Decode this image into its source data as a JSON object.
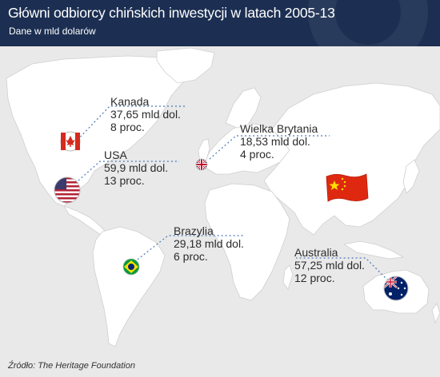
{
  "header": {
    "title": "Główni odbiorcy chińskich inwestycji w latach 2005-13",
    "subtitle": "Dane w mld dolarów"
  },
  "colors": {
    "header_bg": "#1c2f52",
    "ocean": "#e9e9e9",
    "land": "#ffffff",
    "leader_line": "#4a78b5"
  },
  "countries": [
    {
      "id": "kanada",
      "name": "Kanada",
      "amount": "37,65 mld dol.",
      "share": "8 proc.",
      "flag": "canada-flag"
    },
    {
      "id": "usa",
      "name": "USA",
      "amount": "59,9 mld dol.",
      "share": "13 proc.",
      "flag": "usa-flag"
    },
    {
      "id": "wielka-brytania",
      "name": "Wielka Brytania",
      "amount": "18,53 mld dol.",
      "share": "4 proc.",
      "flag": "uk-flag"
    },
    {
      "id": "brazylia",
      "name": "Brazylia",
      "amount": "29,18 mld dol.",
      "share": "6 proc.",
      "flag": "brazil-flag"
    },
    {
      "id": "australia",
      "name": "Australia",
      "amount": "57,25 mld dol.",
      "share": "12 proc.",
      "flag": "australia-flag"
    }
  ],
  "investor": {
    "flag": "china-flag"
  },
  "source": "Źródło: The Heritage Foundation"
}
